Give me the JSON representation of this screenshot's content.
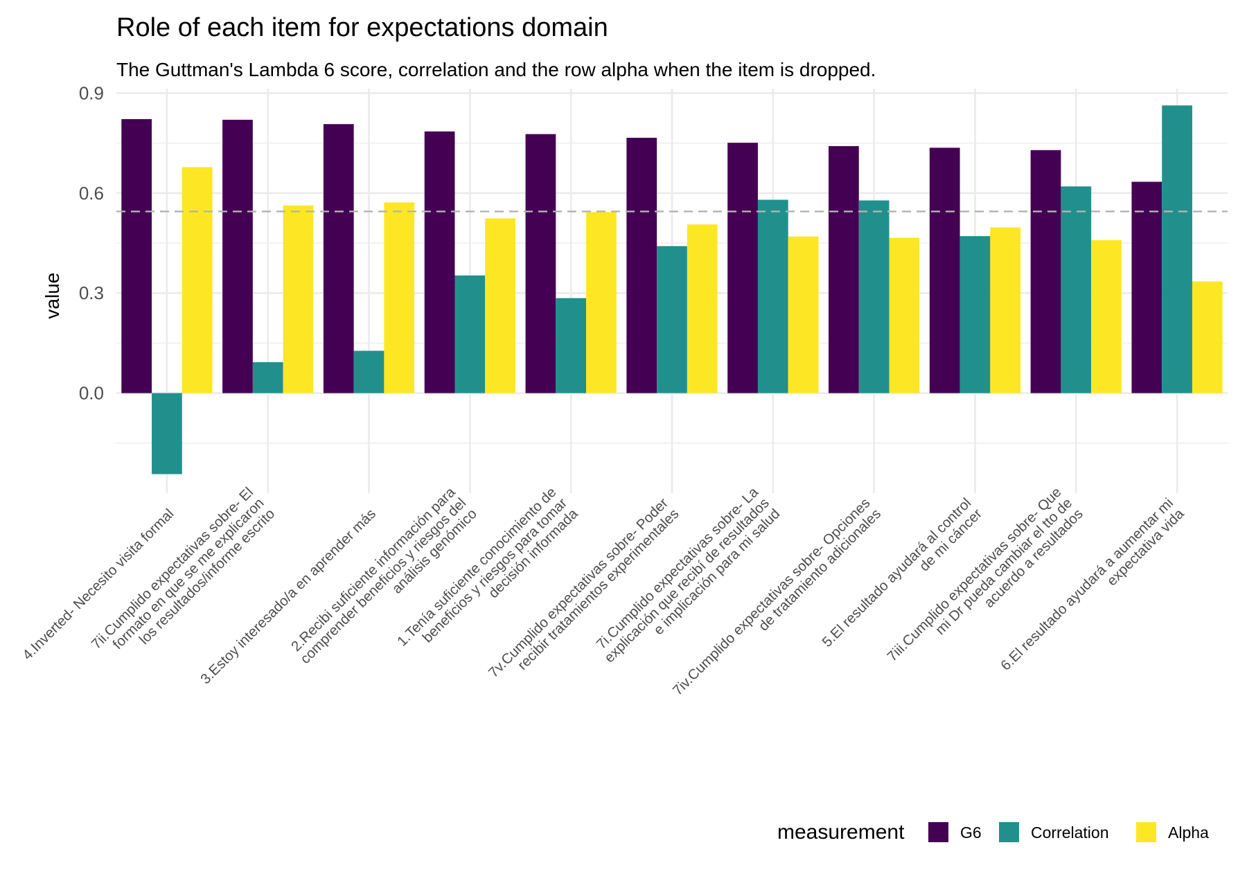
{
  "chart_data": {
    "type": "bar",
    "title": "Role of each item for expectations domain",
    "subtitle": "The Guttman's Lambda 6 score, correlation and the row alpha when the item is dropped.",
    "xlabel": "",
    "ylabel": "value",
    "ylim": [
      -0.3,
      0.905
    ],
    "yticks": [
      0.0,
      0.3,
      0.6,
      0.9
    ],
    "ytick_labels": [
      "0.0",
      "0.3",
      "0.6",
      "0.9"
    ],
    "reference_line": 0.545,
    "grid": true,
    "legend": {
      "title": "measurement",
      "position": "bottom-right"
    },
    "categories": [
      [
        "4.Inverted- Necesito visita formal"
      ],
      [
        "7ii.Cumplido expectativas sobre- El",
        "formato en que se me explicaron",
        "los resultados/informe escrito"
      ],
      [
        "3.Estoy interesado/a en aprender más"
      ],
      [
        "2.Recibi suficiente información para",
        "comprender beneficios y riesgos del",
        "análisis genómico"
      ],
      [
        "1.Tenía suficiente conocimiento de",
        "beneficios y riesgos para tomar",
        "decisión informada"
      ],
      [
        "7v.Cumplido expectativas sobre- Poder",
        "recibir tratamientos experimentales"
      ],
      [
        "7i.Cumplido expectativas sobre- La",
        "explicación que recibí de resultados",
        "e implicación para mi salud"
      ],
      [
        "7iv.Cumplido expectativas sobre- Opciones",
        "de tratamiento adicionales"
      ],
      [
        "5.El resultado ayudará al control",
        "de mi cáncer"
      ],
      [
        "7iii.Cumplido expectativas sobre- Que",
        "mi Dr pueda cambiar el tto de",
        "acuerdo a resultados"
      ],
      [
        "6.El resultado ayudará a aumentar mi",
        "expectativa vida"
      ]
    ],
    "series": [
      {
        "name": "G6",
        "color": "#440154",
        "values": [
          0.822,
          0.82,
          0.807,
          0.785,
          0.777,
          0.766,
          0.751,
          0.741,
          0.736,
          0.729,
          0.634
        ]
      },
      {
        "name": "Correlation",
        "color": "#21908C",
        "values": [
          -0.243,
          0.093,
          0.127,
          0.353,
          0.285,
          0.441,
          0.58,
          0.578,
          0.471,
          0.62,
          0.863
        ]
      },
      {
        "name": "Alpha",
        "color": "#FDE725",
        "values": [
          0.678,
          0.563,
          0.572,
          0.524,
          0.543,
          0.506,
          0.47,
          0.466,
          0.497,
          0.459,
          0.335
        ]
      }
    ]
  }
}
